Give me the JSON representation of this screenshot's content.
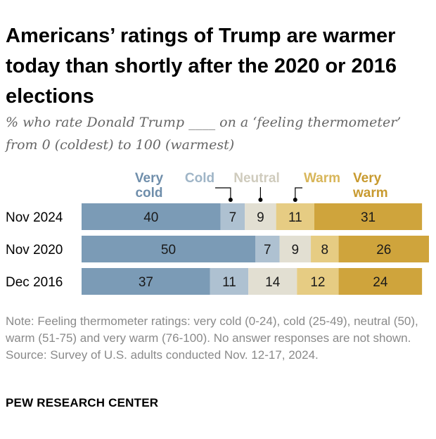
{
  "title": "Americans’ ratings of Trump are warmer today than shortly after the 2020 or 2016 elections",
  "subtitle": "% who rate Donald Trump ____ on a ‘feeling thermometer’ from 0 (coldest) to 100 (warmest)",
  "note": "Note: Feeling thermometer ratings: very cold (0-24), cold (25-49), neutral (50), warm (51-75) and very warm (76-100). No answer responses are not shown.",
  "source": "Source: Survey of U.S. adults conducted Nov. 12-17, 2024.",
  "brand": "PEW RESEARCH CENTER",
  "colors": {
    "very_cold": "#7b9bb6",
    "cold": "#aec1d1",
    "neutral": "#e2dfd2",
    "warm": "#e6cc83",
    "very_warm": "#cfa43c",
    "very_cold_label": "#6f8eab",
    "cold_label": "#9fb5c7",
    "neutral_label": "#cfcbbd",
    "warm_label": "#d8b65a",
    "very_warm_label": "#c89a2f"
  },
  "chart_data": {
    "type": "bar",
    "orientation": "horizontal",
    "stacked": true,
    "categories": [
      "Nov 2024",
      "Nov 2020",
      "Dec 2016"
    ],
    "series": [
      {
        "name": "Very cold",
        "key": "very_cold",
        "values": [
          40,
          50,
          37
        ]
      },
      {
        "name": "Cold",
        "key": "cold",
        "values": [
          7,
          7,
          11
        ]
      },
      {
        "name": "Neutral",
        "key": "neutral",
        "values": [
          9,
          9,
          14
        ]
      },
      {
        "name": "Warm",
        "key": "warm",
        "values": [
          11,
          8,
          12
        ]
      },
      {
        "name": "Very warm",
        "key": "very_warm",
        "values": [
          31,
          26,
          24
        ]
      }
    ],
    "legend_labels": {
      "very_cold": [
        "Very",
        "cold"
      ],
      "cold": [
        "Cold"
      ],
      "neutral": [
        "Neutral"
      ],
      "warm": [
        "Warm"
      ],
      "very_warm": [
        "Very",
        "warm"
      ]
    },
    "legend_placement": "top",
    "xlim": [
      0,
      100
    ],
    "xlabel": "",
    "ylabel": "",
    "grid": false
  }
}
